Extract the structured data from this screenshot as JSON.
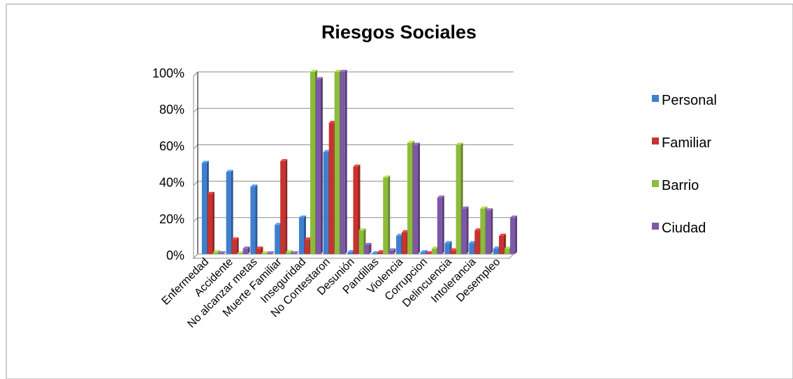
{
  "chart_data": {
    "type": "bar",
    "title": "Riesgos Sociales",
    "xlabel": "",
    "ylabel": "",
    "ylim": [
      0,
      100
    ],
    "ytick_labels": [
      "0%",
      "20%",
      "40%",
      "60%",
      "80%",
      "100%"
    ],
    "grid": true,
    "legend_position": "right",
    "categories": [
      "Enfermedad",
      "Accidente",
      "No alcanzar metas",
      "Muerte Familiar",
      "Inseguridad",
      "No Contestaron",
      "Desunión",
      "Pandillas",
      "Violencia",
      "Corrupcion",
      "Delincuencia",
      "Intolerancia",
      "Desempleo"
    ],
    "series": [
      {
        "name": "Personal",
        "color": "#3f7fcf",
        "values": [
          50,
          45,
          37,
          16,
          20,
          56,
          1,
          0,
          10,
          1,
          6,
          6,
          3
        ]
      },
      {
        "name": "Familiar",
        "color": "#c8322f",
        "values": [
          33,
          8,
          3,
          51,
          8,
          72,
          48,
          1,
          12,
          0,
          2,
          13,
          10
        ]
      },
      {
        "name": "Barrio",
        "color": "#8dbb3b",
        "values": [
          1,
          0,
          0,
          1,
          100,
          100,
          13,
          42,
          61,
          3,
          60,
          25,
          3
        ]
      },
      {
        "name": "Ciudad",
        "color": "#7e58a8",
        "values": [
          0,
          3,
          0,
          0,
          96,
          100,
          5,
          2,
          60,
          31,
          25,
          24,
          20
        ]
      }
    ]
  }
}
